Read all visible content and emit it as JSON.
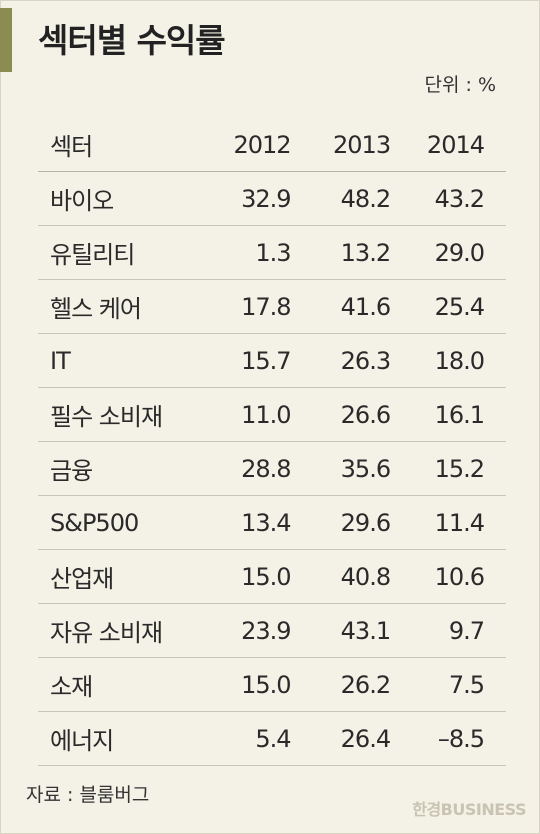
{
  "title": "섹터별 수익률",
  "unit": "단위 : %",
  "header": {
    "sector": "섹터",
    "y2012": "2012",
    "y2013": "2013",
    "y2014": "2014"
  },
  "rows": [
    {
      "sector": "바이오",
      "v2012": "32.9",
      "v2013": "48.2",
      "v2014": "43.2"
    },
    {
      "sector": "유틸리티",
      "v2012": "1.3",
      "v2013": "13.2",
      "v2014": "29.0"
    },
    {
      "sector": "헬스 케어",
      "v2012": "17.8",
      "v2013": "41.6",
      "v2014": "25.4"
    },
    {
      "sector": "IT",
      "v2012": "15.7",
      "v2013": "26.3",
      "v2014": "18.0"
    },
    {
      "sector": "필수 소비재",
      "v2012": "11.0",
      "v2013": "26.6",
      "v2014": "16.1"
    },
    {
      "sector": "금융",
      "v2012": "28.8",
      "v2013": "35.6",
      "v2014": "15.2"
    },
    {
      "sector": "S&P500",
      "v2012": "13.4",
      "v2013": "29.6",
      "v2014": "11.4"
    },
    {
      "sector": "산업재",
      "v2012": "15.0",
      "v2013": "40.8",
      "v2014": "10.6"
    },
    {
      "sector": "자유 소비재",
      "v2012": "23.9",
      "v2013": "43.1",
      "v2014": "9.7"
    },
    {
      "sector": "소재",
      "v2012": "15.0",
      "v2013": "26.2",
      "v2014": "7.5"
    },
    {
      "sector": "에너지",
      "v2012": "5.4",
      "v2013": "26.4",
      "v2014": "–8.5"
    }
  ],
  "source": "자료 : 블룸버그",
  "watermark": "한경BUSINESS",
  "colors": {
    "background": "#f4f1e6",
    "accent": "#8a8c52",
    "rule": "#c9c5b7"
  }
}
